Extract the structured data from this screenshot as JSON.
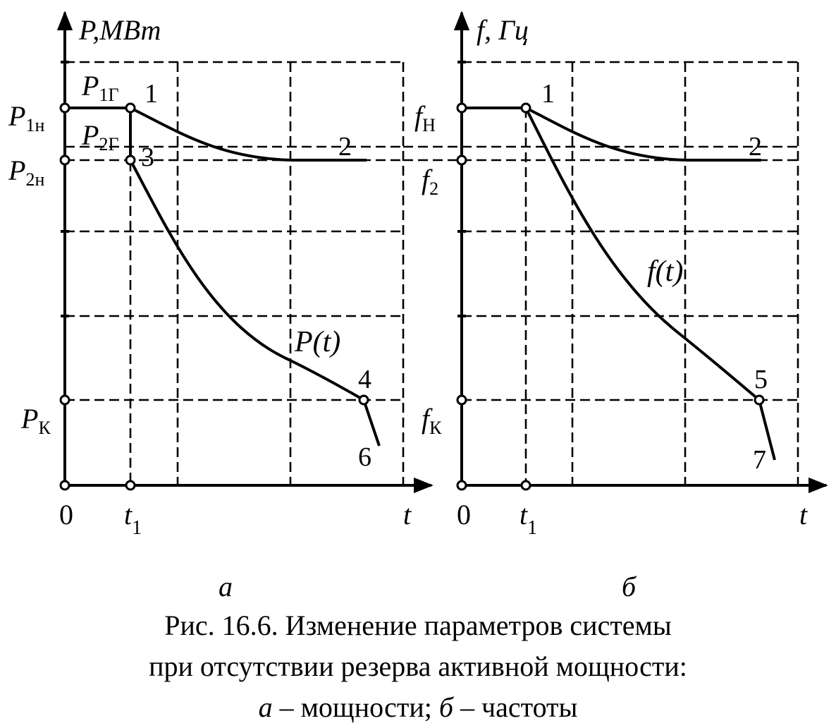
{
  "panel_a": {
    "y_axis_label": "P,МВт",
    "x_axis_label": "t",
    "origin_label": "0",
    "t1_label": "t",
    "t1_sub": "1",
    "p1n_label": "P",
    "p1n_sub": "1н",
    "p2n_label": "P",
    "p2n_sub": "2н",
    "pk_label": "P",
    "pk_sub": "К",
    "p1g_label": "P",
    "p1g_sub": "1Г",
    "p2g_label": "P",
    "p2g_sub": "2Г",
    "curve_label": "P(t)",
    "points": [
      "1",
      "2",
      "3",
      "4",
      "6"
    ],
    "letter": "а"
  },
  "panel_b": {
    "y_axis_label": "f, Гц",
    "x_axis_label": "t",
    "origin_label": "0",
    "t1_label": "t",
    "t1_sub": "1",
    "fn_label": "f",
    "fn_sub": "Н",
    "f2_label": "f",
    "f2_sub": "2",
    "fk_label": "f",
    "fk_sub": "К",
    "curve_label": "f(t)",
    "points": [
      "1",
      "2",
      "5",
      "7"
    ],
    "letter": "б"
  },
  "caption": {
    "line1": "Рис. 16.6. Изменение параметров системы",
    "line2": "при отсутствии резерва активной мощности:",
    "line3_a": "а",
    "line3_mid": " – мощности; ",
    "line3_b": "б",
    "line3_end": " – частоты"
  }
}
